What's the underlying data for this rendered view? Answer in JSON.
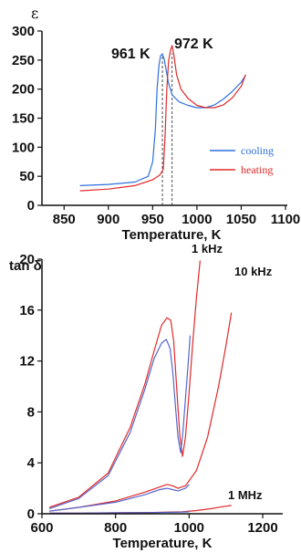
{
  "chart_data": [
    {
      "type": "line",
      "ylabel": "ε",
      "xlabel": "Temperature, K",
      "xlim": [
        825,
        1100
      ],
      "ylim": [
        0,
        300
      ],
      "xticks": [
        "850",
        "900",
        "950",
        "1000",
        "1050",
        "1100"
      ],
      "yticks": [
        "0",
        "50",
        "100",
        "150",
        "200",
        "250",
        "300"
      ],
      "annotations": [
        "961 K",
        "972 K"
      ],
      "vlines": [
        961,
        972
      ],
      "legend": "right",
      "series": [
        {
          "name": "cooling",
          "color": "#2f6fdd",
          "x": [
            868,
            900,
            930,
            945,
            950,
            953,
            955,
            957,
            959,
            961,
            963,
            965,
            968,
            972,
            980,
            990,
            1000,
            1010,
            1020,
            1030,
            1040,
            1050,
            1055
          ],
          "y": [
            34,
            36,
            40,
            50,
            75,
            130,
            200,
            240,
            258,
            260,
            252,
            235,
            210,
            190,
            178,
            172,
            168,
            168,
            173,
            183,
            196,
            212,
            224
          ]
        },
        {
          "name": "heating",
          "color": "#e02a2a",
          "x": [
            868,
            900,
            930,
            950,
            958,
            962,
            964,
            966,
            968,
            970,
            972,
            974,
            977,
            982,
            990,
            1000,
            1010,
            1020,
            1030,
            1040,
            1050,
            1055
          ],
          "y": [
            25,
            28,
            34,
            44,
            52,
            62,
            120,
            200,
            248,
            266,
            275,
            258,
            225,
            200,
            184,
            172,
            168,
            168,
            173,
            185,
            205,
            225
          ]
        }
      ]
    },
    {
      "type": "line",
      "ylabel": "tan δ",
      "xlabel": "Temperature, K",
      "xlim": [
        600,
        1200
      ],
      "ylim": [
        0,
        20
      ],
      "xticks": [
        "600",
        "800",
        "1000",
        "1200"
      ],
      "yticks": [
        "0",
        "4",
        "8",
        "12",
        "16",
        "20"
      ],
      "annotations": [
        "1 kHz",
        "10 kHz",
        "1 MHz"
      ],
      "series": [
        {
          "name": "1 kHz heating",
          "color": "#e02a2a",
          "x": [
            620,
            700,
            780,
            840,
            880,
            905,
            925,
            940,
            950,
            958,
            966,
            975,
            982,
            990,
            1000,
            1010,
            1020,
            1030
          ],
          "y": [
            0.5,
            1.3,
            3.2,
            6.8,
            10.2,
            12.8,
            14.8,
            15.4,
            15.2,
            13.6,
            10.0,
            6.0,
            4.5,
            6.0,
            9.5,
            13.5,
            17.0,
            19.9
          ]
        },
        {
          "name": "1 kHz cooling",
          "color": "#5566cc",
          "x": [
            620,
            700,
            780,
            840,
            880,
            905,
            925,
            938,
            948,
            956,
            963,
            970,
            977,
            983,
            990,
            998,
            1003
          ],
          "y": [
            0.4,
            1.2,
            3.0,
            6.4,
            9.8,
            12.2,
            13.4,
            13.7,
            13.0,
            11.0,
            8.4,
            6.0,
            4.8,
            6.4,
            9.0,
            12.0,
            14.0
          ]
        },
        {
          "name": "10 kHz heating",
          "color": "#e02a2a",
          "x": [
            620,
            700,
            800,
            880,
            920,
            940,
            955,
            970,
            990,
            1020,
            1050,
            1080,
            1100,
            1115
          ],
          "y": [
            0.2,
            0.5,
            1.0,
            1.7,
            2.1,
            2.3,
            2.2,
            2.0,
            2.2,
            3.4,
            6.0,
            10.0,
            13.2,
            15.8
          ]
        },
        {
          "name": "10 kHz cooling",
          "color": "#5566cc",
          "x": [
            620,
            700,
            800,
            880,
            920,
            940,
            955,
            970,
            990,
            1000
          ],
          "y": [
            0.2,
            0.5,
            0.9,
            1.5,
            1.9,
            2.0,
            1.9,
            1.8,
            2.0,
            2.3
          ]
        },
        {
          "name": "1 MHz heating",
          "color": "#e02a2a",
          "x": [
            620,
            700,
            800,
            900,
            980,
            1020,
            1060,
            1090,
            1115
          ],
          "y": [
            0.05,
            0.05,
            0.08,
            0.1,
            0.15,
            0.25,
            0.4,
            0.55,
            0.65
          ]
        },
        {
          "name": "1 MHz cooling",
          "color": "#5566cc",
          "x": [
            620,
            700,
            800,
            900,
            980,
            1000
          ],
          "y": [
            0.04,
            0.05,
            0.07,
            0.09,
            0.13,
            0.15
          ]
        }
      ]
    }
  ]
}
